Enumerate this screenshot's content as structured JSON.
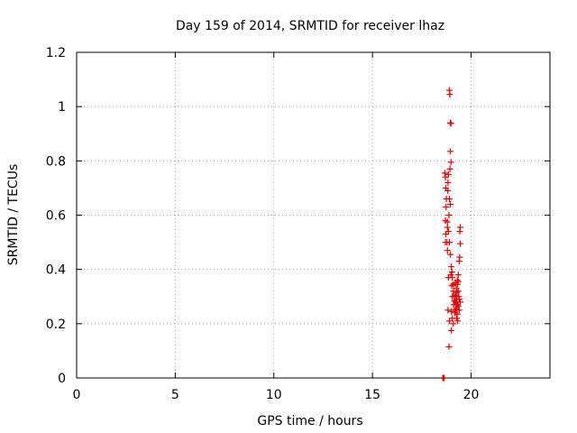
{
  "chart_data": {
    "type": "scatter",
    "title": "Day 159 of 2014, SRMTID for receiver lhaz",
    "xlabel": "GPS time / hours",
    "ylabel": "SRMTID / TECUs",
    "xlim": [
      0,
      24
    ],
    "ylim": [
      0,
      1.2
    ],
    "xticks": [
      0,
      5,
      10,
      15,
      20
    ],
    "yticks": [
      0,
      0.2,
      0.4,
      0.6,
      0.8,
      1,
      1.2
    ],
    "xtick_labels": [
      "0",
      "5",
      "10",
      "15",
      "20"
    ],
    "ytick_labels": [
      "0",
      "0.2",
      "0.4",
      "0.6",
      "0.8",
      "1",
      "1.2"
    ],
    "grid": true,
    "marker": "plus",
    "color": "#e00000",
    "points": [
      [
        18.57,
        0.0
      ],
      [
        18.6,
        0.0
      ],
      [
        18.63,
        0.0
      ],
      [
        18.67,
        0.755
      ],
      [
        18.7,
        0.74
      ],
      [
        18.72,
        0.7
      ],
      [
        18.75,
        0.66
      ],
      [
        18.73,
        0.63
      ],
      [
        18.7,
        0.58
      ],
      [
        18.8,
        0.575
      ],
      [
        18.72,
        0.53
      ],
      [
        18.78,
        0.5
      ],
      [
        18.7,
        0.5
      ],
      [
        18.8,
        0.47
      ],
      [
        18.85,
        0.37
      ],
      [
        18.83,
        0.25
      ],
      [
        18.9,
        0.21
      ],
      [
        18.88,
        0.115
      ],
      [
        18.9,
        1.06
      ],
      [
        18.92,
        1.045
      ],
      [
        18.95,
        0.94
      ],
      [
        18.98,
        0.938
      ],
      [
        18.95,
        0.835
      ],
      [
        18.98,
        0.795
      ],
      [
        18.93,
        0.77
      ],
      [
        18.85,
        0.75
      ],
      [
        18.83,
        0.72
      ],
      [
        18.82,
        0.69
      ],
      [
        18.9,
        0.66
      ],
      [
        18.95,
        0.64
      ],
      [
        18.88,
        0.6
      ],
      [
        18.8,
        0.555
      ],
      [
        18.85,
        0.54
      ],
      [
        18.9,
        0.5
      ],
      [
        18.95,
        0.455
      ],
      [
        19.0,
        0.41
      ],
      [
        19.03,
        0.39
      ],
      [
        18.97,
        0.38
      ],
      [
        19.05,
        0.37
      ],
      [
        19.02,
        0.34
      ],
      [
        19.1,
        0.345
      ],
      [
        19.1,
        0.32
      ],
      [
        19.05,
        0.3
      ],
      [
        19.15,
        0.285
      ],
      [
        19.12,
        0.27
      ],
      [
        19.2,
        0.25
      ],
      [
        19.0,
        0.245
      ],
      [
        19.05,
        0.22
      ],
      [
        19.1,
        0.2
      ],
      [
        19.0,
        0.175
      ],
      [
        19.15,
        0.3
      ],
      [
        19.2,
        0.35
      ],
      [
        19.25,
        0.33
      ],
      [
        19.22,
        0.305
      ],
      [
        19.28,
        0.29
      ],
      [
        19.3,
        0.27
      ],
      [
        19.25,
        0.255
      ],
      [
        19.3,
        0.235
      ],
      [
        19.27,
        0.22
      ],
      [
        19.32,
        0.21
      ],
      [
        19.3,
        0.36
      ],
      [
        19.35,
        0.38
      ],
      [
        19.32,
        0.345
      ],
      [
        19.38,
        0.3
      ],
      [
        19.35,
        0.265
      ],
      [
        19.4,
        0.25
      ],
      [
        19.4,
        0.43
      ],
      [
        19.42,
        0.445
      ],
      [
        19.45,
        0.495
      ],
      [
        19.43,
        0.54
      ],
      [
        19.45,
        0.555
      ],
      [
        19.35,
        0.32
      ],
      [
        19.25,
        0.28
      ],
      [
        19.18,
        0.24
      ],
      [
        19.2,
        0.28
      ],
      [
        19.28,
        0.315
      ],
      [
        19.35,
        0.355
      ],
      [
        19.4,
        0.29
      ],
      [
        19.45,
        0.28
      ]
    ]
  }
}
